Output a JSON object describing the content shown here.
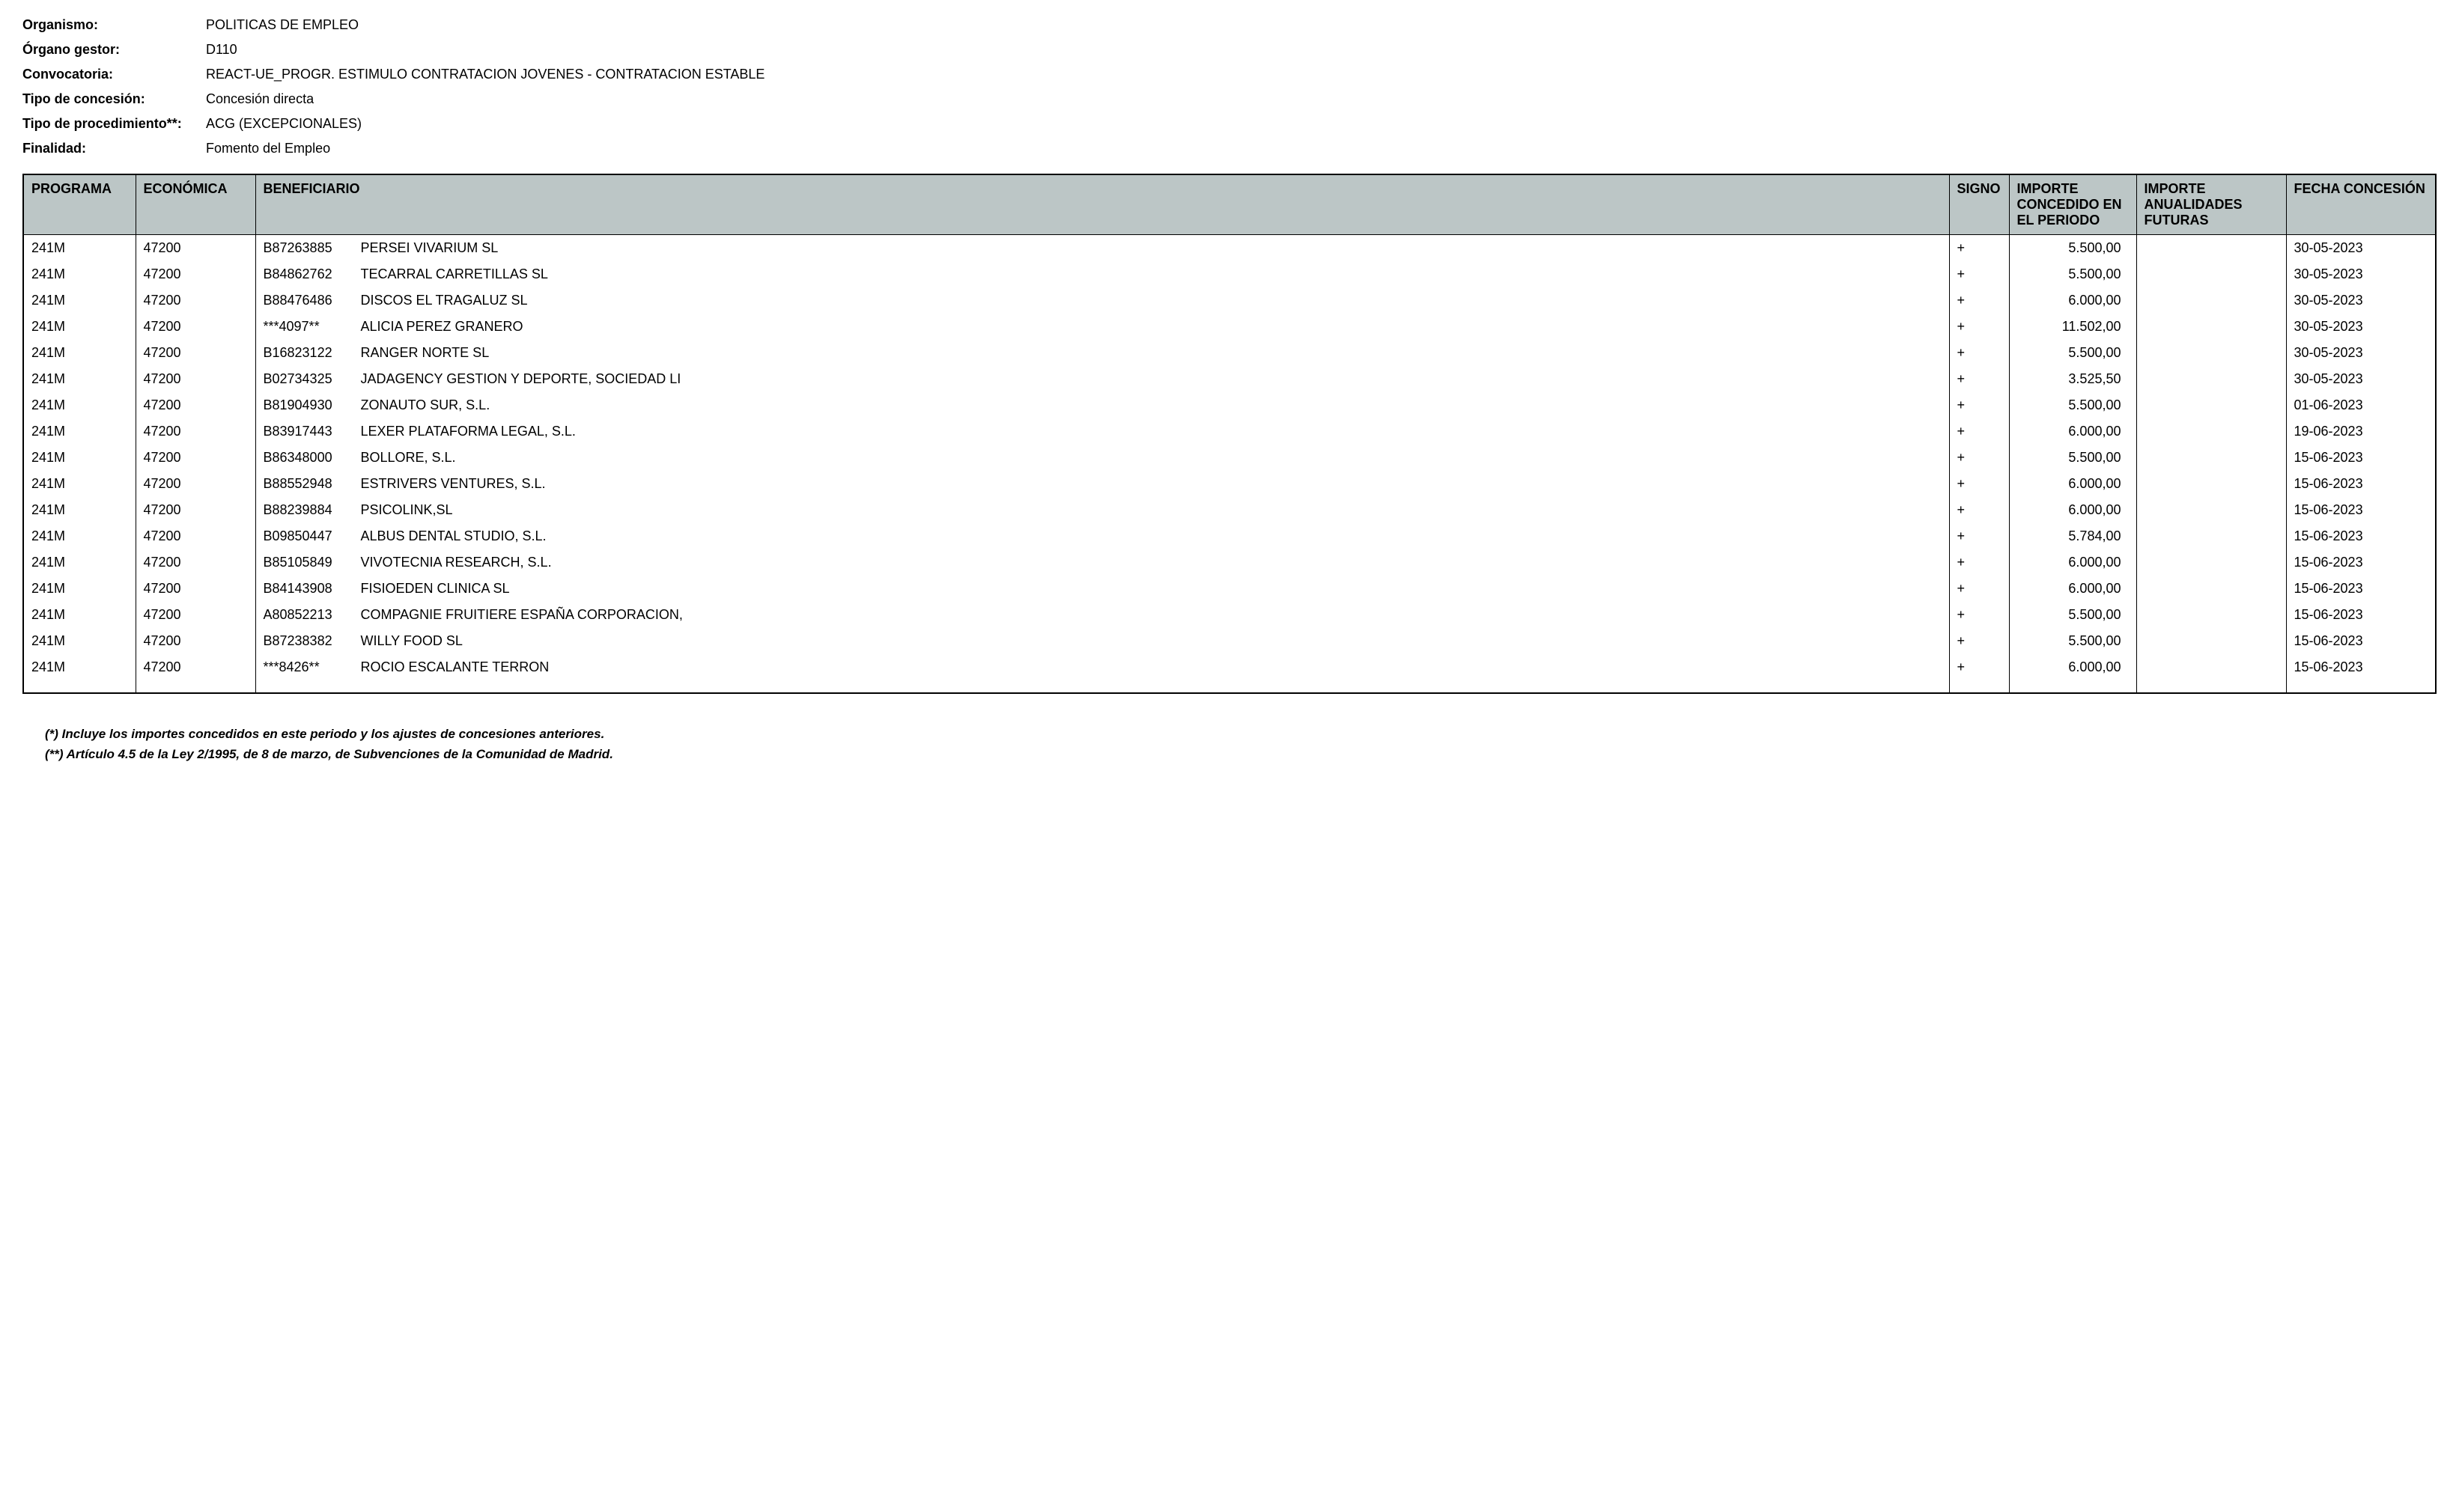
{
  "header": {
    "labels": {
      "organismo": "Organismo:",
      "organo_gestor": "Órgano gestor:",
      "convocatoria": "Convocatoria:",
      "tipo_concesion": "Tipo de concesión:",
      "tipo_procedimiento": "Tipo de procedimiento**:",
      "finalidad": "Finalidad:"
    },
    "values": {
      "organismo": "POLITICAS DE EMPLEO",
      "organo_gestor": "D110",
      "convocatoria": "REACT-UE_PROGR. ESTIMULO CONTRATACION JOVENES - CONTRATACION ESTABLE",
      "tipo_concesion": "Concesión directa",
      "tipo_procedimiento": "ACG (EXCEPCIONALES)",
      "finalidad": "Fomento del Empleo"
    }
  },
  "table": {
    "columns": {
      "programa": "PROGRAMA",
      "economica": "ECONÓMICA",
      "beneficiario": "BENEFICIARIO",
      "signo": "SIGNO",
      "importe_concedido": "IMPORTE CONCEDIDO EN EL PERIODO",
      "importe_futuras": "IMPORTE ANUALIDADES FUTURAS",
      "fecha": "FECHA CONCESIÓN"
    },
    "rows": [
      {
        "programa": "241M",
        "economica": "47200",
        "benef_id": "B87263885",
        "benef_name": "PERSEI VIVARIUM SL",
        "signo": "+",
        "importe1": "5.500,00",
        "importe2": "",
        "fecha": "30-05-2023"
      },
      {
        "programa": "241M",
        "economica": "47200",
        "benef_id": "B84862762",
        "benef_name": "TECARRAL CARRETILLAS SL",
        "signo": "+",
        "importe1": "5.500,00",
        "importe2": "",
        "fecha": "30-05-2023"
      },
      {
        "programa": "241M",
        "economica": "47200",
        "benef_id": "B88476486",
        "benef_name": "DISCOS EL TRAGALUZ SL",
        "signo": "+",
        "importe1": "6.000,00",
        "importe2": "",
        "fecha": "30-05-2023"
      },
      {
        "programa": "241M",
        "economica": "47200",
        "benef_id": "***4097**",
        "benef_name": "ALICIA PEREZ GRANERO",
        "signo": "+",
        "importe1": "11.502,00",
        "importe2": "",
        "fecha": "30-05-2023"
      },
      {
        "programa": "241M",
        "economica": "47200",
        "benef_id": "B16823122",
        "benef_name": "RANGER NORTE SL",
        "signo": "+",
        "importe1": "5.500,00",
        "importe2": "",
        "fecha": "30-05-2023"
      },
      {
        "programa": "241M",
        "economica": "47200",
        "benef_id": "B02734325",
        "benef_name": "JADAGENCY GESTION Y DEPORTE, SOCIEDAD LI",
        "signo": "+",
        "importe1": "3.525,50",
        "importe2": "",
        "fecha": "30-05-2023"
      },
      {
        "programa": "241M",
        "economica": "47200",
        "benef_id": "B81904930",
        "benef_name": "ZONAUTO SUR, S.L.",
        "signo": "+",
        "importe1": "5.500,00",
        "importe2": "",
        "fecha": "01-06-2023"
      },
      {
        "programa": "241M",
        "economica": "47200",
        "benef_id": "B83917443",
        "benef_name": "LEXER PLATAFORMA LEGAL, S.L.",
        "signo": "+",
        "importe1": "6.000,00",
        "importe2": "",
        "fecha": "19-06-2023"
      },
      {
        "programa": "241M",
        "economica": "47200",
        "benef_id": "B86348000",
        "benef_name": "BOLLORE, S.L.",
        "signo": "+",
        "importe1": "5.500,00",
        "importe2": "",
        "fecha": "15-06-2023"
      },
      {
        "programa": "241M",
        "economica": "47200",
        "benef_id": "B88552948",
        "benef_name": "ESTRIVERS VENTURES, S.L.",
        "signo": "+",
        "importe1": "6.000,00",
        "importe2": "",
        "fecha": "15-06-2023"
      },
      {
        "programa": "241M",
        "economica": "47200",
        "benef_id": "B88239884",
        "benef_name": "PSICOLINK,SL",
        "signo": "+",
        "importe1": "6.000,00",
        "importe2": "",
        "fecha": "15-06-2023"
      },
      {
        "programa": "241M",
        "economica": "47200",
        "benef_id": "B09850447",
        "benef_name": "ALBUS DENTAL STUDIO, S.L.",
        "signo": "+",
        "importe1": "5.784,00",
        "importe2": "",
        "fecha": "15-06-2023"
      },
      {
        "programa": "241M",
        "economica": "47200",
        "benef_id": "B85105849",
        "benef_name": "VIVOTECNIA RESEARCH, S.L.",
        "signo": "+",
        "importe1": "6.000,00",
        "importe2": "",
        "fecha": "15-06-2023"
      },
      {
        "programa": "241M",
        "economica": "47200",
        "benef_id": "B84143908",
        "benef_name": "FISIOEDEN CLINICA SL",
        "signo": "+",
        "importe1": "6.000,00",
        "importe2": "",
        "fecha": "15-06-2023"
      },
      {
        "programa": "241M",
        "economica": "47200",
        "benef_id": "A80852213",
        "benef_name": "COMPAGNIE FRUITIERE ESPAÑA CORPORACION,",
        "signo": "+",
        "importe1": "5.500,00",
        "importe2": "",
        "fecha": "15-06-2023"
      },
      {
        "programa": "241M",
        "economica": "47200",
        "benef_id": "B87238382",
        "benef_name": "WILLY FOOD SL",
        "signo": "+",
        "importe1": "5.500,00",
        "importe2": "",
        "fecha": "15-06-2023"
      },
      {
        "programa": "241M",
        "economica": "47200",
        "benef_id": "***8426**",
        "benef_name": "ROCIO ESCALANTE TERRON",
        "signo": "+",
        "importe1": "6.000,00",
        "importe2": "",
        "fecha": "15-06-2023"
      }
    ]
  },
  "footnotes": {
    "note1": "(*) Incluye los importes concedidos en este periodo y los ajustes de concesiones anteriores.",
    "note2": "(**) Artículo 4.5 de la Ley 2/1995, de 8 de marzo, de Subvenciones de la Comunidad de Madrid."
  },
  "styling": {
    "header_bg": "#bcc6c6",
    "border_color": "#000000",
    "text_color": "#000000",
    "page_bg": "#ffffff",
    "font_family": "Arial, Helvetica, sans-serif",
    "base_font_size": 18
  }
}
